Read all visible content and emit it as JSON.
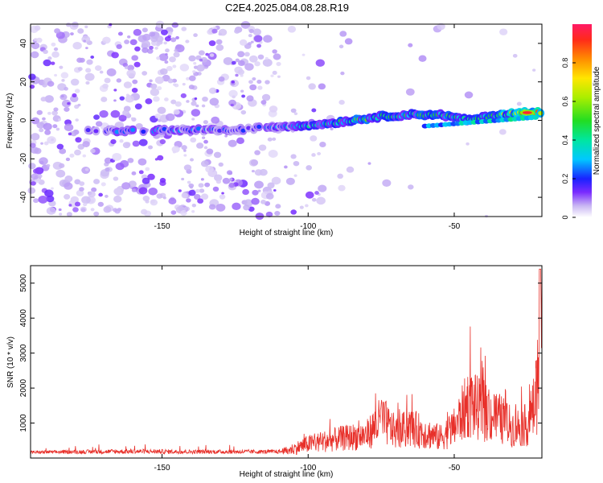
{
  "title": "C2E4.2025.084.08.28.R19",
  "chart_data": [
    {
      "type": "heatmap",
      "xlabel": "Height of straight line (km)",
      "ylabel": "Frequency (Hz)",
      "xlim": [
        -195,
        -20
      ],
      "ylim": [
        -50,
        50
      ],
      "xticks": [
        -150,
        -100,
        -50
      ],
      "yticks": [
        -40,
        -20,
        0,
        20,
        40
      ],
      "colorbar": {
        "label": "Normalized spectral amplitude",
        "range": [
          0,
          1
        ],
        "ticks": [
          0,
          0.2,
          0.4,
          0.6,
          0.8
        ]
      },
      "ridge": [
        {
          "x": -180,
          "y": -5.5,
          "amp": 0.2
        },
        {
          "x": -160,
          "y": -5.5,
          "amp": 0.25
        },
        {
          "x": -140,
          "y": -5,
          "amp": 0.25
        },
        {
          "x": -125,
          "y": -5,
          "amp": 0.2
        },
        {
          "x": -108,
          "y": -3,
          "amp": 0.3
        },
        {
          "x": -95,
          "y": -2,
          "amp": 0.4
        },
        {
          "x": -85,
          "y": 0,
          "amp": 0.5
        },
        {
          "x": -75,
          "y": 2,
          "amp": 0.5
        },
        {
          "x": -65,
          "y": 3,
          "amp": 0.5
        },
        {
          "x": -55,
          "y": 3,
          "amp": 0.45
        },
        {
          "x": -45,
          "y": 0,
          "amp": 0.5
        },
        {
          "x": -35,
          "y": 3,
          "amp": 0.5
        },
        {
          "x": -25,
          "y": 4,
          "amp": 0.95
        }
      ]
    },
    {
      "type": "line",
      "xlabel": "Height of straight line (km)",
      "ylabel": "SNR (10 * v/v)",
      "xlim": [
        -195,
        -20
      ],
      "ylim": [
        0,
        5500
      ],
      "xticks": [
        -150,
        -100,
        -50
      ],
      "yticks": [
        1000,
        2000,
        3000,
        4000,
        5000
      ],
      "color": "#e8302a",
      "envelope": [
        {
          "x": -195,
          "y": 150
        },
        {
          "x": -160,
          "y": 200
        },
        {
          "x": -140,
          "y": 180
        },
        {
          "x": -110,
          "y": 180
        },
        {
          "x": -100,
          "y": 550
        },
        {
          "x": -90,
          "y": 750
        },
        {
          "x": -80,
          "y": 900
        },
        {
          "x": -75,
          "y": 1500
        },
        {
          "x": -70,
          "y": 1000
        },
        {
          "x": -65,
          "y": 1200
        },
        {
          "x": -55,
          "y": 800
        },
        {
          "x": -50,
          "y": 1200
        },
        {
          "x": -45,
          "y": 2200
        },
        {
          "x": -40,
          "y": 1800
        },
        {
          "x": -35,
          "y": 1600
        },
        {
          "x": -30,
          "y": 1200
        },
        {
          "x": -25,
          "y": 1300
        },
        {
          "x": -22,
          "y": 2200
        },
        {
          "x": -20,
          "y": 5400
        }
      ]
    }
  ]
}
